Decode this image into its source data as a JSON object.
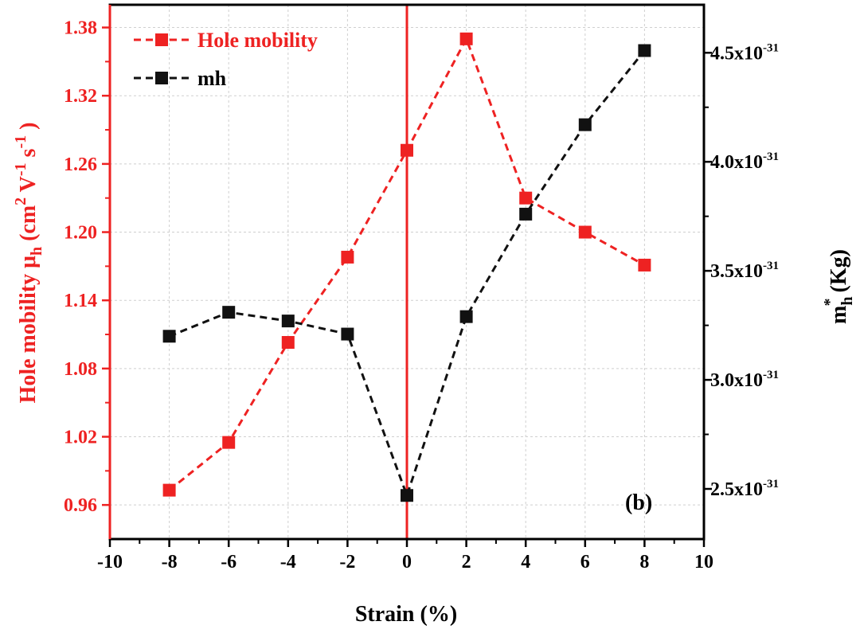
{
  "chart_data": {
    "type": "line",
    "panel_label": "(b)",
    "x": [
      -8,
      -6,
      -4,
      -2,
      0,
      2,
      4,
      6,
      8
    ],
    "xlim": [
      -10,
      10
    ],
    "xticks": [
      "-10",
      "-8",
      "-6",
      "-4",
      "-2",
      "0",
      "2",
      "4",
      "6",
      "8",
      "10"
    ],
    "xlabel": "Strain (%)",
    "ylim_left": [
      0.93,
      1.4
    ],
    "yticks_left": [
      "0.96",
      "1.02",
      "1.08",
      "1.14",
      "1.20",
      "1.26",
      "1.32",
      "1.38"
    ],
    "ylim_right": [
      2.27e-31,
      4.72e-31
    ],
    "yticks_right": [
      {
        "mantissa": "2.5x10",
        "exp": "-31"
      },
      {
        "mantissa": "3.0x10",
        "exp": "-31"
      },
      {
        "mantissa": "3.5x10",
        "exp": "-31"
      },
      {
        "mantissa": "4.0x10",
        "exp": "-31"
      },
      {
        "mantissa": "4.5x10",
        "exp": "-31"
      }
    ],
    "ylabel_left": {
      "a": "Hole mobility μ",
      "a_sub": "h",
      "b": " (cm",
      "b_sup": "2",
      "c": " V",
      "c_sup": "-1",
      "d": " s",
      "d_sup": "-1",
      "e": " )"
    },
    "ylabel_right": {
      "a": "m",
      "a_sub": "h",
      "a_sup": "*",
      "b": " (Kg)"
    },
    "series": [
      {
        "name": "Hole mobility",
        "axis": "left",
        "color": "#ee2222",
        "values": [
          0.973,
          1.015,
          1.103,
          1.178,
          1.272,
          1.37,
          1.23,
          1.2,
          1.171
        ]
      },
      {
        "name": "mh",
        "axis": "right",
        "color": "#111111",
        "values": [
          3.2e-31,
          3.31e-31,
          3.27e-31,
          3.21e-31,
          2.47e-31,
          3.29e-31,
          3.76e-31,
          4.17e-31,
          4.51e-31
        ]
      }
    ],
    "reference_line": {
      "x": 0,
      "color": "#ee2222"
    },
    "grid": true,
    "legend_position": "top-left"
  }
}
